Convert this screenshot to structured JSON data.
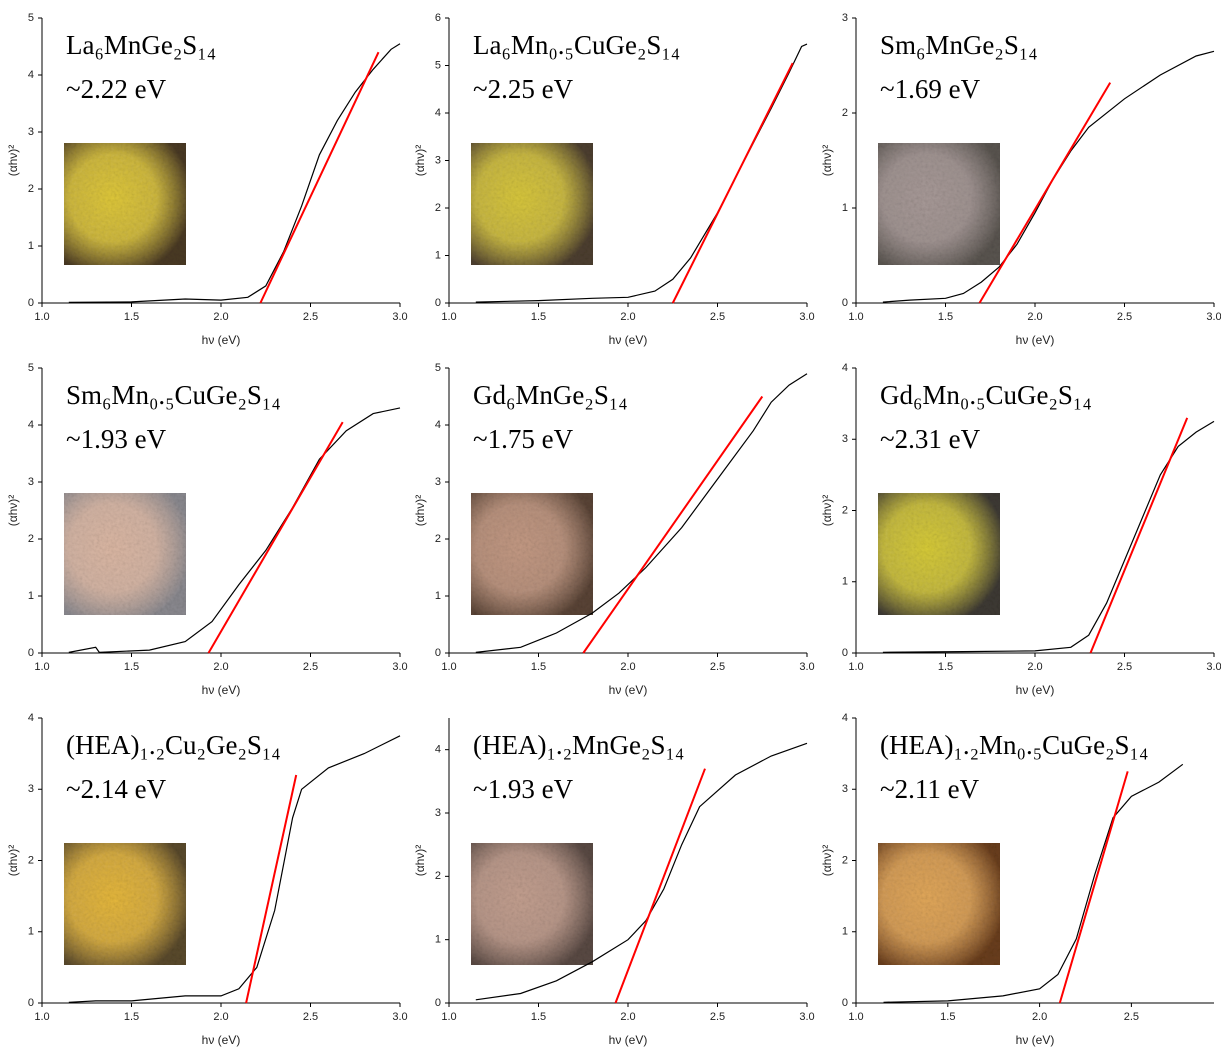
{
  "chart_data": [
    {
      "type": "line",
      "title": "La₆MnGe₂S₁₄",
      "annotation": "~2.22 eV",
      "xlabel": "hν (eV)",
      "ylabel": "(αhν)²",
      "xlim": [
        1,
        3
      ],
      "xticks": [
        {
          "value": 1,
          "label": "1.0"
        },
        1.5,
        {
          "value": 2,
          "label": "2.0"
        },
        2.5,
        {
          "value": 3,
          "label": "3.0"
        }
      ],
      "ylim": [
        0,
        5
      ],
      "yticks": [
        0,
        1,
        2,
        3,
        4,
        5
      ],
      "series": [
        {
          "color": "#000000",
          "x": [
            1.15,
            1.5,
            1.8,
            2.0,
            2.15,
            2.25,
            2.35,
            2.45,
            2.55,
            2.65,
            2.75,
            2.85,
            2.95,
            3.0
          ],
          "values": [
            0.01,
            0.02,
            0.07,
            0.05,
            0.1,
            0.3,
            0.9,
            1.7,
            2.6,
            3.2,
            3.7,
            4.1,
            4.45,
            4.55
          ]
        },
        {
          "color": "#ff0000",
          "x": [
            2.22,
            2.88
          ],
          "values": [
            0,
            4.4
          ]
        }
      ]
    },
    {
      "type": "line",
      "title": "La₆Mn₀.₅CuGe₂S₁₄",
      "annotation": "~2.25 eV",
      "xlabel": "hν (eV)",
      "ylabel": "(αhν)²",
      "xlim": [
        1,
        3
      ],
      "xticks": [
        {
          "value": 1,
          "label": "1.0"
        },
        1.5,
        {
          "value": 2,
          "label": "2.0"
        },
        2.5,
        {
          "value": 3,
          "label": "3.0"
        }
      ],
      "ylim": [
        0,
        6
      ],
      "yticks": [
        0,
        1,
        2,
        3,
        4,
        5,
        6
      ],
      "series": [
        {
          "color": "#000000",
          "x": [
            1.15,
            1.5,
            1.8,
            2.0,
            2.15,
            2.25,
            2.35,
            2.5,
            2.65,
            2.8,
            2.9,
            2.97,
            3.0
          ],
          "values": [
            0.02,
            0.05,
            0.1,
            0.12,
            0.25,
            0.5,
            0.95,
            1.9,
            3.0,
            4.1,
            4.85,
            5.4,
            5.45
          ]
        },
        {
          "color": "#ff0000",
          "x": [
            2.25,
            2.92
          ],
          "values": [
            0,
            5.05
          ]
        }
      ]
    },
    {
      "type": "line",
      "title": "Sm₆MnGe₂S₁₄",
      "annotation": "~1.69 eV",
      "xlabel": "hν (eV)",
      "ylabel": "(αhν)²",
      "xlim": [
        1,
        3
      ],
      "xticks": [
        {
          "value": 1,
          "label": "1.0"
        },
        1.5,
        {
          "value": 2,
          "label": "2.0"
        },
        2.5,
        {
          "value": 3,
          "label": "3.0"
        }
      ],
      "ylim": [
        0,
        3
      ],
      "yticks": [
        0,
        1,
        2,
        3
      ],
      "series": [
        {
          "color": "#000000",
          "x": [
            1.15,
            1.3,
            1.5,
            1.6,
            1.7,
            1.8,
            1.9,
            2.0,
            2.1,
            2.2,
            2.3,
            2.5,
            2.7,
            2.9,
            3.0
          ],
          "values": [
            0.01,
            0.03,
            0.05,
            0.1,
            0.22,
            0.38,
            0.62,
            0.95,
            1.3,
            1.6,
            1.85,
            2.15,
            2.4,
            2.6,
            2.65
          ]
        },
        {
          "color": "#ff0000",
          "x": [
            1.69,
            2.42
          ],
          "values": [
            0,
            2.32
          ]
        }
      ]
    },
    {
      "type": "line",
      "title": "Sm₆Mn₀.₅CuGe₂S₁₄",
      "annotation": "~1.93 eV",
      "xlabel": "hν (eV)",
      "ylabel": "(αhν)²",
      "xlim": [
        1,
        3
      ],
      "xticks": [
        {
          "value": 1,
          "label": "1.0"
        },
        1.5,
        {
          "value": 2,
          "label": "2.0"
        },
        2.5,
        {
          "value": 3,
          "label": "3.0"
        }
      ],
      "ylim": [
        0,
        5
      ],
      "yticks": [
        0,
        1,
        2,
        3,
        4,
        5
      ],
      "series": [
        {
          "color": "#000000",
          "x": [
            1.15,
            1.3,
            1.32,
            1.6,
            1.8,
            1.95,
            2.1,
            2.25,
            2.4,
            2.55,
            2.7,
            2.85,
            3.0
          ],
          "values": [
            0.01,
            0.1,
            0.01,
            0.05,
            0.2,
            0.55,
            1.2,
            1.8,
            2.55,
            3.4,
            3.9,
            4.2,
            4.3
          ]
        },
        {
          "color": "#ff0000",
          "x": [
            1.93,
            2.68
          ],
          "values": [
            0,
            4.05
          ]
        }
      ]
    },
    {
      "type": "line",
      "title": "Gd₆MnGe₂S₁₄",
      "annotation": "~1.75 eV",
      "xlabel": "hν (eV)",
      "ylabel": "(αhν)²",
      "xlim": [
        1,
        3
      ],
      "xticks": [
        {
          "value": 1,
          "label": "1.0"
        },
        1.5,
        {
          "value": 2,
          "label": "2.0"
        },
        2.5,
        {
          "value": 3,
          "label": "3.0"
        }
      ],
      "ylim": [
        0,
        5
      ],
      "yticks": [
        0,
        1,
        2,
        3,
        4,
        5
      ],
      "series": [
        {
          "color": "#000000",
          "x": [
            1.15,
            1.4,
            1.6,
            1.8,
            1.95,
            2.1,
            2.3,
            2.5,
            2.7,
            2.8,
            2.9,
            3.0
          ],
          "values": [
            0.01,
            0.1,
            0.35,
            0.7,
            1.05,
            1.5,
            2.2,
            3.05,
            3.9,
            4.4,
            4.7,
            4.9
          ]
        },
        {
          "color": "#ff0000",
          "x": [
            1.75,
            2.75
          ],
          "values": [
            0,
            4.5
          ]
        }
      ]
    },
    {
      "type": "line",
      "title": "Gd₆Mn₀.₅CuGe₂S₁₄",
      "annotation": "~2.31 eV",
      "xlabel": "hν (eV)",
      "ylabel": "(αhν)²",
      "xlim": [
        1,
        3
      ],
      "xticks": [
        {
          "value": 1,
          "label": "1.0"
        },
        1.5,
        {
          "value": 2,
          "label": "2.0"
        },
        2.5,
        {
          "value": 3,
          "label": "3.0"
        }
      ],
      "ylim": [
        0,
        4
      ],
      "yticks": [
        0,
        1,
        2,
        3,
        4
      ],
      "series": [
        {
          "color": "#000000",
          "x": [
            1.15,
            1.6,
            2.0,
            2.2,
            2.3,
            2.4,
            2.5,
            2.6,
            2.7,
            2.8,
            2.9,
            3.0
          ],
          "values": [
            0.01,
            0.02,
            0.03,
            0.08,
            0.25,
            0.7,
            1.3,
            1.9,
            2.5,
            2.9,
            3.1,
            3.25
          ]
        },
        {
          "color": "#ff0000",
          "x": [
            2.31,
            2.85
          ],
          "values": [
            0,
            3.3
          ]
        }
      ]
    },
    {
      "type": "line",
      "title": "(HEA)₁.₂Cu₂Ge₂S₁₄",
      "annotation": "~2.14 eV",
      "xlabel": "hν (eV)",
      "ylabel": "(αhν)²",
      "xlim": [
        1,
        3
      ],
      "xticks": [
        {
          "value": 1,
          "label": "1.0"
        },
        1.5,
        {
          "value": 2,
          "label": "2.0"
        },
        2.5,
        {
          "value": 3,
          "label": "3.0"
        }
      ],
      "ylim": [
        0,
        4
      ],
      "yticks": [
        0,
        1,
        2,
        3,
        4
      ],
      "series": [
        {
          "color": "#000000",
          "x": [
            1.15,
            1.3,
            1.5,
            1.8,
            2.0,
            2.1,
            2.2,
            2.3,
            2.4,
            2.45,
            2.6,
            2.8,
            3.0
          ],
          "values": [
            0.01,
            0.03,
            0.03,
            0.1,
            0.1,
            0.2,
            0.5,
            1.3,
            2.6,
            3.0,
            3.3,
            3.5,
            3.75
          ]
        },
        {
          "color": "#ff0000",
          "x": [
            2.14,
            2.42
          ],
          "values": [
            0,
            3.2
          ]
        }
      ]
    },
    {
      "type": "line",
      "title": "(HEA)₁.₂MnGe₂S₁₄",
      "annotation": "~1.93 eV",
      "xlabel": "hν (eV)",
      "ylabel": "(αhν)²",
      "xlim": [
        1,
        3
      ],
      "xticks": [
        {
          "value": 1,
          "label": "1.0"
        },
        1.5,
        {
          "value": 2,
          "label": "2.0"
        },
        2.5,
        {
          "value": 3,
          "label": "3.0"
        }
      ],
      "ylim": [
        0,
        4.5
      ],
      "yticks": [
        0,
        1,
        2,
        3,
        4
      ],
      "series": [
        {
          "color": "#000000",
          "x": [
            1.15,
            1.4,
            1.6,
            1.8,
            2.0,
            2.1,
            2.2,
            2.3,
            2.4,
            2.6,
            2.8,
            3.0
          ],
          "values": [
            0.05,
            0.15,
            0.35,
            0.65,
            1.0,
            1.3,
            1.8,
            2.5,
            3.1,
            3.6,
            3.9,
            4.1
          ]
        },
        {
          "color": "#ff0000",
          "x": [
            1.93,
            2.43
          ],
          "values": [
            0,
            3.7
          ]
        }
      ]
    },
    {
      "type": "line",
      "title": "(HEA)₁.₂Mn₀.₅CuGe₂S₁₄",
      "annotation": "~2.11 eV",
      "xlabel": "hν (eV)",
      "ylabel": "(αhν)²",
      "xlim": [
        1,
        2.95
      ],
      "xticks": [
        {
          "value": 1,
          "label": "1.0"
        },
        1.5,
        {
          "value": 2,
          "label": "2.0"
        },
        2.5
      ],
      "ylim": [
        0,
        4
      ],
      "yticks": [
        0,
        1,
        2,
        3,
        4
      ],
      "series": [
        {
          "color": "#000000",
          "x": [
            1.15,
            1.5,
            1.8,
            2.0,
            2.1,
            2.2,
            2.3,
            2.4,
            2.5,
            2.65,
            2.78
          ],
          "values": [
            0.01,
            0.03,
            0.1,
            0.2,
            0.4,
            0.9,
            1.8,
            2.6,
            2.9,
            3.1,
            3.35
          ]
        },
        {
          "color": "#ff0000",
          "x": [
            2.11,
            2.48
          ],
          "values": [
            0,
            3.25
          ]
        }
      ]
    }
  ]
}
